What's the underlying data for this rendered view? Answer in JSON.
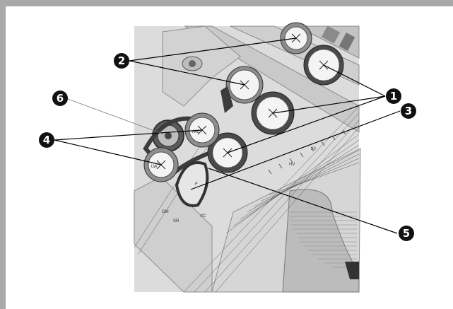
{
  "callouts": [
    {
      "id": "callout-1",
      "text": "❶"
    },
    {
      "id": "callout-2",
      "text": "❷"
    },
    {
      "id": "callout-3",
      "text": "❸"
    },
    {
      "id": "callout-4",
      "text": "❹"
    },
    {
      "id": "callout-5",
      "text": "❺"
    },
    {
      "id": "callout-6",
      "text": "❻"
    }
  ],
  "labels": {
    "gm": "GM",
    "sr": "SR",
    "vc": "VC",
    "lw": "LW",
    "aw": "AW",
    "f": "F",
    "hv": "HV",
    "scale_20": "20"
  },
  "colors": {
    "roll_dark": "#4a4a4a",
    "roll_mid": "#9a9a9a",
    "roll_face": "#f4f4f4",
    "background_plate": "#d8d8d8",
    "guide_plate": "#c8c8c8"
  }
}
